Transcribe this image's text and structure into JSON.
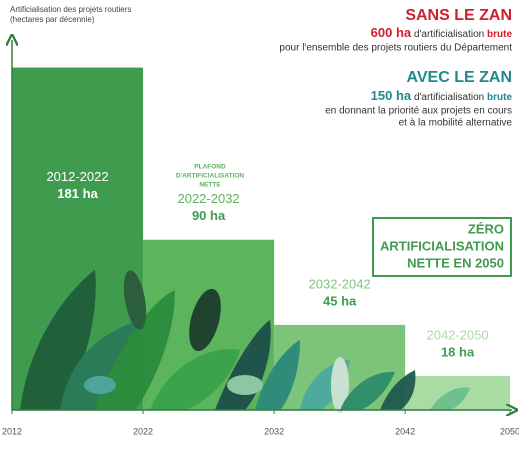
{
  "chart_data": {
    "type": "bar",
    "ylabel": [
      "Artificialisation des projets routiers",
      "(hectares par décennie)"
    ],
    "categories": [
      "2012-2022",
      "2022-2032",
      "2032-2042",
      "2042-2050"
    ],
    "bins": [
      2012,
      2022,
      2032,
      2042,
      2050
    ],
    "values": [
      181,
      90,
      45,
      18
    ],
    "value_labels": [
      "181 ha",
      "90 ha",
      "45 ha",
      "18 ha"
    ],
    "colors": [
      "#3f9c4f",
      "#5cb45d",
      "#7cc47a",
      "#a9dca2"
    ],
    "xlim": [
      2012,
      2050
    ],
    "xticks": [
      2012,
      2022,
      2032,
      2042,
      2050
    ],
    "ylim": [
      0,
      185
    ],
    "annotations": {
      "without_title": "SANS LE ZAN",
      "without_amount": "600 ha",
      "without_text": "d'artificialisation",
      "without_kind": "brute",
      "without_note": "pour l'ensemble des projets routiers du Département",
      "with_title": "AVEC LE ZAN",
      "with_amount": "150 ha",
      "with_text": "d'artificialisation",
      "with_kind": "brute",
      "with_note": [
        "en donnant la priorité aux projets en cours",
        "et à la mobilité alternative"
      ],
      "ceiling": [
        "PLAFOND",
        "D'ARTIFICIALISATION",
        "NETTE"
      ],
      "zero": [
        "ZÉRO",
        "ARTIFICIALISATION",
        "NETTE EN 2050"
      ]
    }
  }
}
